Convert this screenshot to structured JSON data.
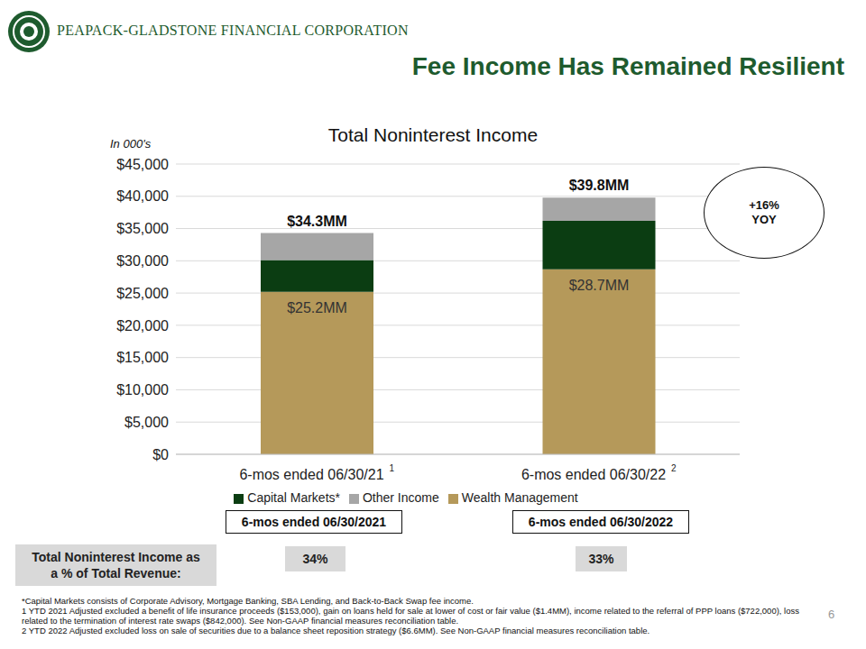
{
  "header": {
    "company": "PEAPACK-GLADSTONE FINANCIAL CORPORATION",
    "title": "Fee Income Has Remained Resilient"
  },
  "chart_data": {
    "type": "bar",
    "title": "Total Noninterest Income",
    "unit_label": "In 000's",
    "categories": [
      "6-mos ended 06/30/21",
      "6-mos ended 06/30/22"
    ],
    "category_notes": [
      "1",
      "2"
    ],
    "stacked": true,
    "grid": true,
    "legend": "bottom",
    "ylim": [
      0,
      45000
    ],
    "yticks": [
      {
        "value": 0,
        "label": "$0"
      },
      {
        "value": 5000,
        "label": "$5,000"
      },
      {
        "value": 10000,
        "label": "$10,000"
      },
      {
        "value": 15000,
        "label": "$15,000"
      },
      {
        "value": 20000,
        "label": "$20,000"
      },
      {
        "value": 25000,
        "label": "$25,000"
      },
      {
        "value": 30000,
        "label": "$30,000"
      },
      {
        "value": 35000,
        "label": "$35,000"
      },
      {
        "value": 40000,
        "label": "$40,000"
      },
      {
        "value": 45000,
        "label": "$45,000"
      }
    ],
    "series": [
      {
        "name": "Wealth Management",
        "color": "#B5995A",
        "values": [
          25200,
          28700
        ],
        "value_labels": [
          "$25.2MM",
          "$28.7MM"
        ]
      },
      {
        "name": "Capital Markets*",
        "color": "#0B3D12",
        "values": [
          4900,
          7500
        ]
      },
      {
        "name": "Other Income",
        "color": "#A6A6A6",
        "values": [
          4200,
          3600
        ]
      }
    ],
    "total_labels": [
      "$34.3MM",
      "$39.8MM"
    ],
    "annotation": [
      "+16%",
      "YOY"
    ]
  },
  "summary": {
    "row_label": "Total Noninterest Income as a % of Total Revenue:",
    "periods": [
      "6-mos ended 06/30/2021",
      "6-mos ended 06/30/2022"
    ],
    "values": [
      "34%",
      "33%"
    ]
  },
  "footnotes": [
    "*Capital Markets consists of Corporate Advisory, Mortgage Banking, SBA Lending, and Back-to-Back Swap fee income.",
    "1 YTD 2021 Adjusted excluded a benefit of life insurance proceeds ($153,000), gain on loans held for sale at lower of cost or fair value ($1.4MM), income related to the referral of PPP loans ($722,000), loss related to the termination of interest rate swaps ($842,000). See Non-GAAP financial measures reconciliation table.",
    "2 YTD 2022 Adjusted excluded loss on sale of securities due to a balance sheet reposition strategy ($6.6MM). See Non-GAAP financial measures reconciliation table."
  ],
  "page_number": "6"
}
